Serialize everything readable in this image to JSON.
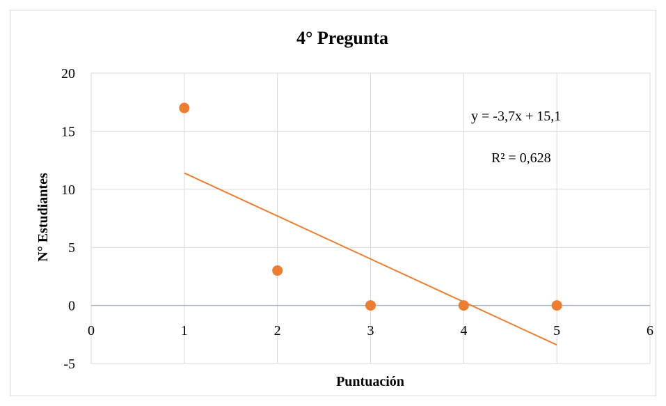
{
  "chart_data": {
    "type": "scatter",
    "title": "4° Pregunta",
    "xlabel": "Puntuación",
    "ylabel": "N° Estudiantes",
    "xlim": [
      0,
      6
    ],
    "ylim": [
      -5,
      20
    ],
    "x_ticks": [
      "0",
      "1",
      "2",
      "3",
      "4",
      "5",
      "6"
    ],
    "y_ticks": [
      "20",
      "15",
      "10",
      "5",
      "0",
      "-5"
    ],
    "grid": true,
    "legend": "none",
    "series": [
      {
        "x": [
          1,
          2,
          3,
          4,
          5
        ],
        "y": [
          17,
          3,
          0,
          0,
          0
        ],
        "color": "#ED7D31"
      }
    ],
    "trendline": {
      "type": "linear",
      "slope": -3.7,
      "intercept": 15.1,
      "x_range": [
        1,
        5
      ],
      "color": "#ED7D31",
      "equation_label": "y = -3,7x + 15,1",
      "r2_label": "R² = 0,628"
    },
    "colors": {
      "grid": "#d9d9d9",
      "zero_axis": "#a6b4c8",
      "text": "#000000"
    }
  }
}
